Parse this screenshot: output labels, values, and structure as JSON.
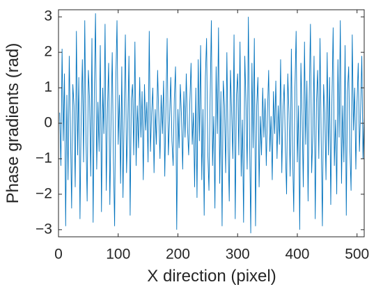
{
  "chart_data": {
    "type": "line",
    "xlabel": "X direction (pixel)",
    "ylabel": "Phase gradients (rad)",
    "color": "#0072bd",
    "xlim": [
      0,
      512
    ],
    "ylim": [
      -3.2,
      3.2
    ],
    "xticks": [
      0,
      100,
      200,
      300,
      400,
      500
    ],
    "yticks": [
      {
        "value": -3,
        "label": "−3"
      },
      {
        "value": -2,
        "label": "−2"
      },
      {
        "value": -1,
        "label": "−1"
      },
      0,
      1,
      2,
      3
    ],
    "x": [
      2,
      4,
      6,
      8,
      10,
      12,
      14,
      16,
      18,
      20,
      22,
      24,
      26,
      28,
      30,
      32,
      34,
      36,
      38,
      40,
      42,
      44,
      46,
      48,
      50,
      52,
      54,
      56,
      58,
      60,
      62,
      64,
      66,
      68,
      70,
      72,
      74,
      76,
      78,
      80,
      82,
      84,
      86,
      88,
      90,
      92,
      94,
      96,
      98,
      100,
      102,
      104,
      106,
      108,
      110,
      112,
      114,
      116,
      118,
      120,
      122,
      124,
      126,
      128,
      130,
      132,
      134,
      136,
      138,
      140,
      142,
      144,
      146,
      148,
      150,
      152,
      154,
      156,
      158,
      160,
      162,
      164,
      166,
      168,
      170,
      172,
      174,
      176,
      178,
      180,
      182,
      184,
      186,
      188,
      190,
      192,
      194,
      196,
      198,
      200,
      202,
      204,
      206,
      208,
      210,
      212,
      214,
      216,
      218,
      220,
      222,
      224,
      226,
      228,
      230,
      232,
      234,
      236,
      238,
      240,
      242,
      244,
      246,
      248,
      250,
      252,
      254,
      256,
      258,
      260,
      262,
      264,
      266,
      268,
      270,
      272,
      274,
      276,
      278,
      280,
      282,
      284,
      286,
      288,
      290,
      292,
      294,
      296,
      298,
      300,
      302,
      304,
      306,
      308,
      310,
      312,
      314,
      316,
      318,
      320,
      322,
      324,
      326,
      328,
      330,
      332,
      334,
      336,
      338,
      340,
      342,
      344,
      346,
      348,
      350,
      352,
      354,
      356,
      358,
      360,
      362,
      364,
      366,
      368,
      370,
      372,
      374,
      376,
      378,
      380,
      382,
      384,
      386,
      388,
      390,
      392,
      394,
      396,
      398,
      400,
      402,
      404,
      406,
      408,
      410,
      412,
      414,
      416,
      418,
      420,
      422,
      424,
      426,
      428,
      430,
      432,
      434,
      436,
      438,
      440,
      442,
      444,
      446,
      448,
      450,
      452,
      454,
      456,
      458,
      460,
      462,
      464,
      466,
      468,
      470,
      472,
      474,
      476,
      478,
      480,
      482,
      484,
      486,
      488,
      490,
      492,
      494,
      496,
      498,
      500,
      502,
      504,
      506,
      508,
      510,
      512
    ],
    "values": [
      0.3,
      -1.2,
      2.1,
      -0.5,
      1.4,
      -2.9,
      0.8,
      -1.6,
      1.9,
      -0.2,
      -2.4,
      1.1,
      0.5,
      -1.8,
      2.6,
      -0.9,
      1.3,
      -2.7,
      0.2,
      1.8,
      -1.1,
      2.9,
      -0.4,
      -2.2,
      1.5,
      0.7,
      -1.5,
      2.4,
      -2.8,
      0.9,
      3.1,
      -1.3,
      0.6,
      -0.8,
      2.2,
      -2.5,
      1.0,
      -0.3,
      2.8,
      -1.9,
      0.4,
      1.7,
      -2.3,
      0.1,
      2.0,
      -1.0,
      -2.9,
      1.2,
      2.9,
      -0.6,
      0.8,
      -1.7,
      1.6,
      -2.1,
      0.3,
      2.5,
      -1.4,
      -0.1,
      1.9,
      -2.6,
      0.7,
      1.1,
      -0.9,
      2.3,
      -1.2,
      0.5,
      -0.7,
      1.3,
      -0.4,
      0.9,
      -1.6,
      1.1,
      -0.2,
      0.6,
      -1.1,
      2.6,
      -0.8,
      0.3,
      1.0,
      -1.4,
      0.4,
      -0.6,
      1.5,
      0.2,
      -1.0,
      0.8,
      -0.3,
      1.2,
      -1.5,
      0.5,
      2.4,
      -0.9,
      0.1,
      1.3,
      -0.5,
      -1.2,
      0.7,
      1.6,
      -3.0,
      0.4,
      -0.7,
      1.1,
      0.2,
      -1.3,
      0.9,
      -0.4,
      1.4,
      -0.1,
      -0.9,
      0.6,
      1.7,
      -0.6,
      0.3,
      -1.8,
      1.0,
      -2.1,
      1.8,
      -0.5,
      2.2,
      -1.6,
      0.4,
      -2.6,
      1.3,
      2.4,
      -0.8,
      -1.9,
      0.7,
      2.9,
      -1.2,
      0.2,
      -2.4,
      1.6,
      -0.3,
      2.7,
      -1.7,
      0.9,
      -2.9,
      1.2,
      0.5,
      -1.4,
      2.0,
      -0.6,
      -2.2,
      1.5,
      0.3,
      -1.0,
      2.5,
      -2.7,
      0.8,
      1.4,
      -0.9,
      2.3,
      -1.5,
      0.1,
      -2.8,
      1.9,
      0.6,
      -1.3,
      3.0,
      -0.4,
      -3.1,
      1.7,
      -0.7,
      2.4,
      -2.9,
      0.5,
      1.3,
      -1.8,
      0.2,
      -0.9,
      1.0,
      -0.4,
      0.7,
      -1.2,
      0.3,
      1.5,
      -0.8,
      0.2,
      -1.6,
      0.9,
      -0.3,
      1.2,
      -1.0,
      0.5,
      -0.6,
      1.8,
      -1.4,
      0.4,
      1.1,
      -0.7,
      -2.0,
      1.4,
      0.3,
      -1.5,
      2.1,
      -0.8,
      -2.5,
      1.0,
      2.6,
      -1.1,
      0.5,
      -3.0,
      1.7,
      0.2,
      -1.8,
      2.3,
      -0.6,
      1.2,
      -2.2,
      0.8,
      2.8,
      -1.4,
      -0.3,
      1.9,
      -2.7,
      0.6,
      1.5,
      -1.0,
      2.4,
      -0.5,
      -2.9,
      1.1,
      0.3,
      -1.6,
      2.0,
      -0.9,
      1.3,
      -2.3,
      0.7,
      2.7,
      -1.2,
      0.1,
      -2.0,
      1.8,
      -0.4,
      2.9,
      -1.7,
      0.5,
      -1.1,
      2.2,
      -2.6,
      0.9,
      1.6,
      -0.7,
      -1.9,
      2.5,
      -0.2,
      1.0,
      -1.3,
      0.6,
      1.7,
      -0.8,
      0.4,
      1.9,
      -1.0,
      0.2
    ]
  }
}
